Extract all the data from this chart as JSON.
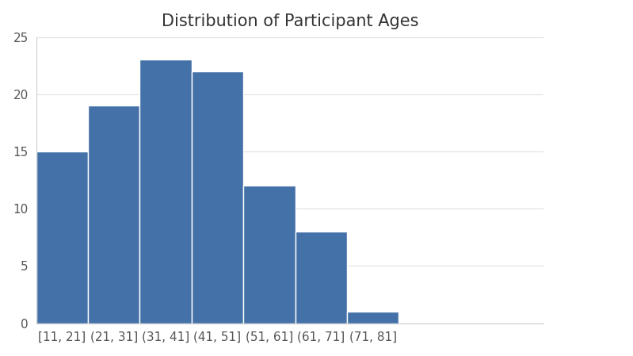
{
  "title": "Distribution of Participant Ages",
  "categories": [
    "[11, 21]",
    "(21, 31]",
    "(31, 41]",
    "(41, 51]",
    "(51, 61]",
    "(61, 71]",
    "(71, 81]"
  ],
  "values": [
    15,
    19,
    23,
    22,
    12,
    8,
    1
  ],
  "bar_color": "#4472a8",
  "ylim": [
    0,
    25
  ],
  "yticks": [
    0,
    5,
    10,
    15,
    20,
    25
  ],
  "title_fontsize": 15,
  "tick_fontsize": 11,
  "background_color": "#ffffff",
  "bar_edge_color": "#ffffff",
  "bar_linewidth": 1.0
}
